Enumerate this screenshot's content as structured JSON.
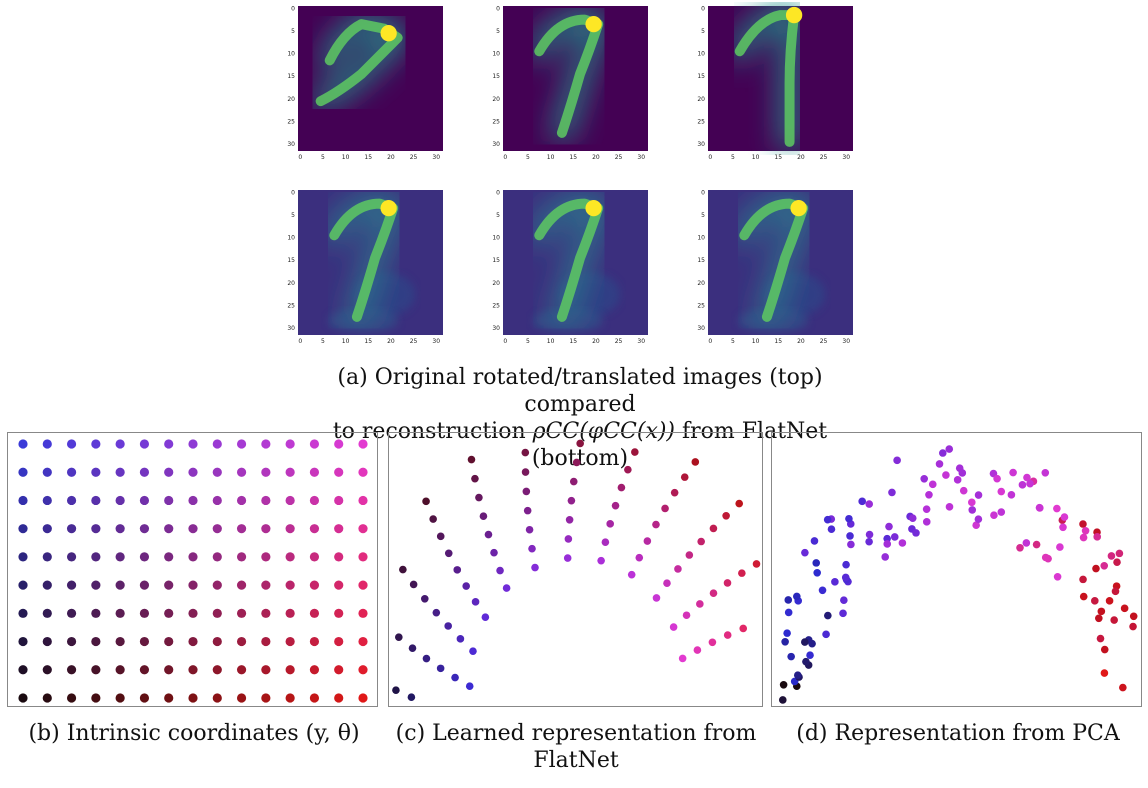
{
  "figure_a": {
    "caption_line1": "(a) Original rotated/translated images (top) compared",
    "caption_line2_prefix": "to reconstruction ",
    "caption_math": "ρCC(φCC(x))",
    "caption_line2_suffix": " from FlatNet (bottom)",
    "x_ticks": [
      "0",
      "5",
      "10",
      "15",
      "20",
      "25",
      "30"
    ],
    "y_ticks": [
      "0",
      "5",
      "10",
      "15",
      "20",
      "25",
      "30"
    ],
    "colormap": "viridis",
    "rows": [
      "original",
      "reconstruction"
    ]
  },
  "figure_b": {
    "caption": "(b) Intrinsic coordinates (y, θ)"
  },
  "figure_c": {
    "caption_line1": "(c) Learned representation from",
    "caption_line2": "FlatNet"
  },
  "figure_d": {
    "caption": "(d) Representation from PCA"
  },
  "chart_data": [
    {
      "panel": "b",
      "type": "scatter",
      "title": "",
      "grid": {
        "columns": 15,
        "rows": 10
      },
      "color_x_from": "#2b2bd0",
      "color_x_to": "#e23ad0",
      "color_y_from": "#3a3ad8",
      "color_y_to": "#1a0a10"
    },
    {
      "panel": "c",
      "type": "scatter",
      "title": "",
      "arcs": 12,
      "points_per_arc": 8,
      "colors": [
        "#1a0a10",
        "#2a1040",
        "#2b2bd0",
        "#6a2ad8",
        "#b230d8",
        "#e23ad0",
        "#c01020",
        "#e01818"
      ]
    },
    {
      "panel": "d",
      "type": "scatter",
      "title": "",
      "points": 150,
      "colors": [
        "#1a0a10",
        "#2b2bd0",
        "#6a2ad8",
        "#b230d8",
        "#e23ad0",
        "#c01020",
        "#e01818"
      ]
    }
  ]
}
